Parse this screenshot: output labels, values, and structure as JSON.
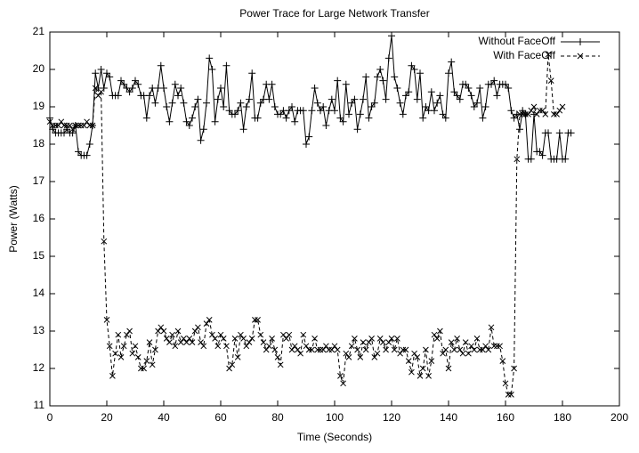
{
  "chart_data": {
    "type": "line",
    "title": "Power Trace for Large Network Transfer",
    "xlabel": "Time (Seconds)",
    "ylabel": "Power (Watts)",
    "xlim": [
      0,
      200
    ],
    "xticks": [
      0,
      20,
      40,
      60,
      80,
      100,
      120,
      140,
      160,
      180,
      200
    ],
    "ylim": [
      11,
      21
    ],
    "yticks": [
      11,
      12,
      13,
      14,
      15,
      16,
      17,
      18,
      19,
      20,
      21
    ],
    "grid": false,
    "legend": "top right",
    "series": [
      {
        "name": "Without FaceOff",
        "color": "#000000",
        "dash": "solid",
        "marker": "plus",
        "x": [
          0,
          1,
          2,
          3,
          4,
          5,
          6,
          7,
          8,
          9,
          10,
          11,
          12,
          13,
          14,
          15,
          16,
          17,
          18,
          19,
          20,
          21,
          22,
          23,
          24,
          25,
          26,
          27,
          28,
          29,
          30,
          31,
          32,
          33,
          34,
          35,
          36,
          37,
          38,
          39,
          40,
          41,
          42,
          43,
          44,
          45,
          46,
          47,
          48,
          49,
          50,
          51,
          52,
          53,
          54,
          55,
          56,
          57,
          58,
          59,
          60,
          61,
          62,
          63,
          64,
          65,
          66,
          67,
          68,
          69,
          70,
          71,
          72,
          73,
          74,
          75,
          76,
          77,
          78,
          79,
          80,
          81,
          82,
          83,
          84,
          85,
          86,
          87,
          88,
          89,
          90,
          91,
          92,
          93,
          94,
          95,
          96,
          97,
          98,
          99,
          100,
          101,
          102,
          103,
          104,
          105,
          106,
          107,
          108,
          109,
          110,
          111,
          112,
          113,
          114,
          115,
          116,
          117,
          118,
          119,
          120,
          121,
          122,
          123,
          124,
          125,
          126,
          127,
          128,
          129,
          130,
          131,
          132,
          133,
          134,
          135,
          136,
          137,
          138,
          139,
          140,
          141,
          142,
          143,
          144,
          145,
          146,
          147,
          148,
          149,
          150,
          151,
          152,
          153,
          154,
          155,
          156,
          157,
          158,
          159,
          160,
          161,
          162,
          163,
          164,
          165,
          166,
          167,
          168,
          169,
          170,
          171,
          172,
          173,
          174,
          175,
          176,
          177,
          178,
          179,
          180,
          181,
          182,
          183
        ],
        "values": [
          18.7,
          18.4,
          18.3,
          18.3,
          18.3,
          18.3,
          18.4,
          18.3,
          18.3,
          18.5,
          17.8,
          17.7,
          17.7,
          17.7,
          18.0,
          18.5,
          19.9,
          19.5,
          20.0,
          19.5,
          19.9,
          19.8,
          19.3,
          19.3,
          19.3,
          19.7,
          19.6,
          19.5,
          19.4,
          19.5,
          19.7,
          19.6,
          19.3,
          19.3,
          18.7,
          19.3,
          19.5,
          19.1,
          19.5,
          20.1,
          19.5,
          19.0,
          18.6,
          19.1,
          19.6,
          19.3,
          19.5,
          19.1,
          18.6,
          18.5,
          18.7,
          19.0,
          19.2,
          18.1,
          18.4,
          19.1,
          20.3,
          20.0,
          18.6,
          19.2,
          19.5,
          19.0,
          20.1,
          18.9,
          18.8,
          18.8,
          18.9,
          19.1,
          18.4,
          19.0,
          19.2,
          19.9,
          18.7,
          18.7,
          19.1,
          19.2,
          19.6,
          19.2,
          19.6,
          19.0,
          18.8,
          18.8,
          18.9,
          18.7,
          18.9,
          19.0,
          18.6,
          18.9,
          18.9,
          18.9,
          18.0,
          18.2,
          18.9,
          19.5,
          19.1,
          18.9,
          19.0,
          18.5,
          18.9,
          19.2,
          18.9,
          19.7,
          18.7,
          18.6,
          19.6,
          18.8,
          19.1,
          19.2,
          18.4,
          18.8,
          19.2,
          19.8,
          18.7,
          19.0,
          19.1,
          19.8,
          20.0,
          19.7,
          19.2,
          20.3,
          20.9,
          19.8,
          19.5,
          19.1,
          18.8,
          19.3,
          19.4,
          20.1,
          20.0,
          19.2,
          19.9,
          18.7,
          19.0,
          18.9,
          19.4,
          18.9,
          19.1,
          19.3,
          18.8,
          18.7,
          19.9,
          20.2,
          19.4,
          19.3,
          19.2,
          19.6,
          19.6,
          19.5,
          19.3,
          19.0,
          19.1,
          19.5,
          18.7,
          19.0,
          19.6,
          19.6,
          19.7,
          19.3,
          19.6,
          19.6,
          19.6,
          19.5,
          18.9,
          18.7,
          18.8,
          18.4,
          18.9,
          18.8,
          17.6,
          17.6,
          18.8,
          17.8,
          17.8,
          17.7,
          18.3,
          18.3,
          17.6,
          17.6,
          17.6,
          18.3,
          17.6,
          17.6,
          18.3,
          18.3
        ]
      },
      {
        "name": "With FaceOff",
        "color": "#000000",
        "dash": "dashed",
        "marker": "cross",
        "x": [
          0,
          1,
          2,
          3,
          4,
          5,
          6,
          7,
          8,
          9,
          10,
          11,
          12,
          13,
          14,
          15,
          16,
          17,
          18,
          19,
          20,
          21,
          22,
          23,
          24,
          25,
          26,
          27,
          28,
          29,
          30,
          31,
          32,
          33,
          34,
          35,
          36,
          37,
          38,
          39,
          40,
          41,
          42,
          43,
          44,
          45,
          46,
          47,
          48,
          49,
          50,
          51,
          52,
          53,
          54,
          55,
          56,
          57,
          58,
          59,
          60,
          61,
          62,
          63,
          64,
          65,
          66,
          67,
          68,
          69,
          70,
          71,
          72,
          73,
          74,
          75,
          76,
          77,
          78,
          79,
          80,
          81,
          82,
          83,
          84,
          85,
          86,
          87,
          88,
          89,
          90,
          91,
          92,
          93,
          94,
          95,
          96,
          97,
          98,
          99,
          100,
          101,
          102,
          103,
          104,
          105,
          106,
          107,
          108,
          109,
          110,
          111,
          112,
          113,
          114,
          115,
          116,
          117,
          118,
          119,
          120,
          121,
          122,
          123,
          124,
          125,
          126,
          127,
          128,
          129,
          130,
          131,
          132,
          133,
          134,
          135,
          136,
          137,
          138,
          139,
          140,
          141,
          142,
          143,
          144,
          145,
          146,
          147,
          148,
          149,
          150,
          151,
          152,
          153,
          154,
          155,
          156,
          157,
          158,
          159,
          160,
          161,
          162,
          163,
          164,
          165,
          166,
          167,
          168,
          169,
          170,
          171,
          172,
          173,
          174,
          175,
          176,
          177,
          178,
          179,
          180
        ],
        "values": [
          18.6,
          18.5,
          18.5,
          18.5,
          18.6,
          18.5,
          18.5,
          18.5,
          18.4,
          18.5,
          18.5,
          18.5,
          18.5,
          18.6,
          18.5,
          18.5,
          19.5,
          19.3,
          19.4,
          15.4,
          13.3,
          12.6,
          11.8,
          12.4,
          12.9,
          12.3,
          12.6,
          12.9,
          13.0,
          12.4,
          12.6,
          12.3,
          12.0,
          12.0,
          12.2,
          12.7,
          12.1,
          12.5,
          13.0,
          13.1,
          13.0,
          12.8,
          12.7,
          12.9,
          12.6,
          13.0,
          12.7,
          12.8,
          12.7,
          12.8,
          12.7,
          13.0,
          13.1,
          12.7,
          12.6,
          13.2,
          13.3,
          12.9,
          12.8,
          12.6,
          12.9,
          12.8,
          12.6,
          12.0,
          12.1,
          12.8,
          12.3,
          12.9,
          12.8,
          12.6,
          12.7,
          12.8,
          13.3,
          13.3,
          12.9,
          12.7,
          12.5,
          12.6,
          12.8,
          12.5,
          12.3,
          12.1,
          12.9,
          12.8,
          12.9,
          12.5,
          12.6,
          12.5,
          12.4,
          12.9,
          12.6,
          12.5,
          12.5,
          12.8,
          12.5,
          12.5,
          12.5,
          12.6,
          12.5,
          12.5,
          12.6,
          12.5,
          11.8,
          11.6,
          12.4,
          12.3,
          12.6,
          12.8,
          12.5,
          12.3,
          12.7,
          12.5,
          12.7,
          12.8,
          12.3,
          12.4,
          12.8,
          12.7,
          12.5,
          12.7,
          12.8,
          12.5,
          12.8,
          12.4,
          12.5,
          12.5,
          12.2,
          11.9,
          12.4,
          12.3,
          11.8,
          12.0,
          12.5,
          11.8,
          12.2,
          12.9,
          12.8,
          13.0,
          12.4,
          12.5,
          12.0,
          12.7,
          12.5,
          12.8,
          12.5,
          12.4,
          12.7,
          12.4,
          12.6,
          12.5,
          12.8,
          12.5,
          12.5,
          12.6,
          12.5,
          13.1,
          12.6,
          12.6,
          12.6,
          12.2,
          11.6,
          11.3,
          11.3,
          12.0,
          17.6,
          18.8,
          18.8,
          18.8,
          18.8,
          18.9,
          19.0,
          18.8,
          18.9,
          18.9,
          18.8,
          20.4,
          19.7,
          18.8,
          18.8,
          18.9,
          19.0
        ]
      }
    ]
  }
}
